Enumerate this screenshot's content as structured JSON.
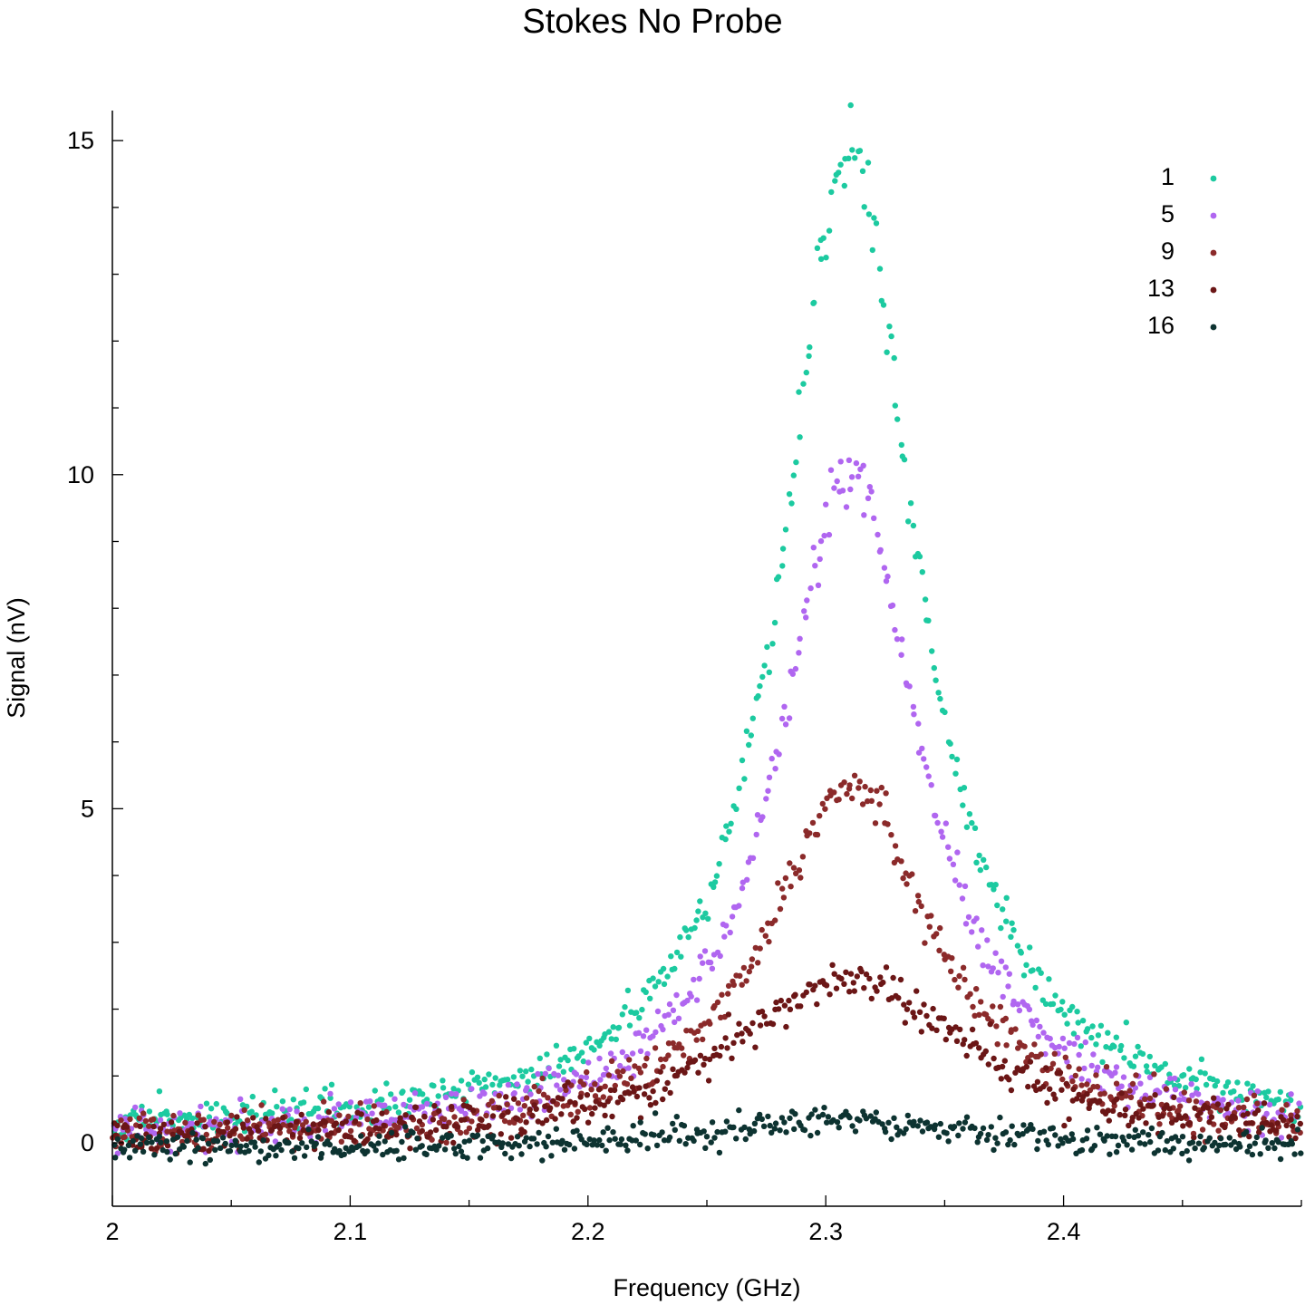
{
  "chart_data": {
    "type": "scatter",
    "title": "Stokes No Probe",
    "xlabel": "Frequency (GHz)",
    "ylabel": "Signal (nV)",
    "xlim": [
      2.0,
      2.5
    ],
    "ylim": [
      -0.95,
      15.45
    ],
    "xticks": [
      2.0,
      2.1,
      2.2,
      2.3,
      2.4
    ],
    "xtick_labels": [
      "2",
      "2.1",
      "2.2",
      "2.3",
      "2.4"
    ],
    "yticks": [
      0,
      5,
      10,
      15
    ],
    "ytick_labels": [
      "0",
      "5",
      "10",
      "15"
    ],
    "grid": false,
    "legend_position": "top-right",
    "x_sampling": {
      "start": 2.0,
      "end": 2.5,
      "points_per_series": 500
    },
    "series": [
      {
        "name": "1",
        "color": "#1ccaa0",
        "baseline": 0.15,
        "peak_x": 2.31,
        "peak_value": 14.7,
        "half_width": 0.034,
        "noise": 0.14
      },
      {
        "name": "5",
        "color": "#b066f0",
        "baseline": 0.05,
        "peak_x": 2.31,
        "peak_value": 9.9,
        "half_width": 0.036,
        "noise": 0.14
      },
      {
        "name": "9",
        "color": "#8b2a2a",
        "baseline": 0.05,
        "peak_x": 2.31,
        "peak_value": 5.35,
        "half_width": 0.042,
        "noise": 0.15
      },
      {
        "name": "13",
        "color": "#6b1616",
        "baseline": 0.0,
        "peak_x": 2.31,
        "peak_value": 2.45,
        "half_width": 0.06,
        "noise": 0.14
      },
      {
        "name": "16",
        "color": "#0d3331",
        "baseline": -0.1,
        "peak_x": 2.31,
        "peak_value": 0.45,
        "half_width": 0.07,
        "noise": 0.11
      }
    ]
  }
}
